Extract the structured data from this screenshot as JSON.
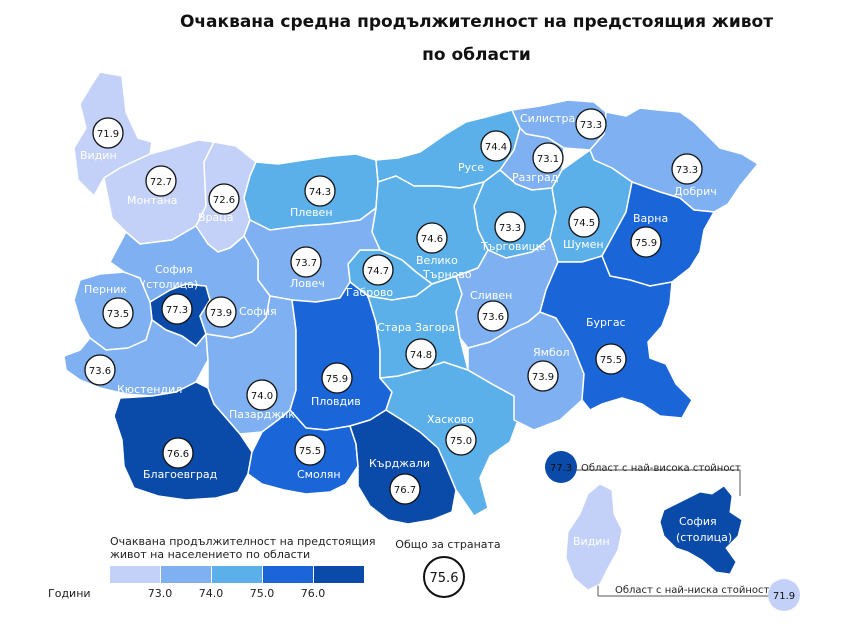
{
  "title_line1": "Очаквана средна продължителност на предстоящия живот",
  "title_line2": "по области",
  "colors": {
    "c1": "#c3d1f8",
    "c2": "#7fb1f2",
    "c3": "#5bb0ea",
    "c4": "#1a66d8",
    "c5": "#0a4aa8",
    "bubble_stroke": "#111111",
    "max_bubble": "#0a4aa8",
    "min_bubble": "#c3d1f8"
  },
  "regions": [
    {
      "name": "Видин",
      "value": "71.9"
    },
    {
      "name": "Монтана",
      "value": "72.7"
    },
    {
      "name": "Враца",
      "value": "72.6"
    },
    {
      "name": "Плевен",
      "value": "74.3"
    },
    {
      "name": "Русе",
      "value": "74.4"
    },
    {
      "name": "Силистра",
      "value": "73.3"
    },
    {
      "name": "Разград",
      "value": "73.1"
    },
    {
      "name": "Добрич",
      "value": "73.3"
    },
    {
      "name": "Търговище",
      "value": "73.3"
    },
    {
      "name": "Шумен",
      "value": "74.5"
    },
    {
      "name": "Варна",
      "value": "75.9"
    },
    {
      "name": "Велико Търново",
      "value": "74.6"
    },
    {
      "name": "Габрово",
      "value": "74.7"
    },
    {
      "name": "Ловеч",
      "value": "73.7"
    },
    {
      "name": "София (столица)",
      "value": "77.3"
    },
    {
      "name": "Перник",
      "value": "73.5"
    },
    {
      "name": "София",
      "value": "73.9"
    },
    {
      "name": "Кюстендил",
      "value": "73.6"
    },
    {
      "name": "Благоевград",
      "value": "76.6"
    },
    {
      "name": "Пазарджик",
      "value": "74.0"
    },
    {
      "name": "Пловдив",
      "value": "75.9"
    },
    {
      "name": "Смолян",
      "value": "75.5"
    },
    {
      "name": "Кърджали",
      "value": "76.7"
    },
    {
      "name": "Хасково",
      "value": "75.0"
    },
    {
      "name": "Стара Загора",
      "value": "74.8"
    },
    {
      "name": "Сливен",
      "value": "73.6"
    },
    {
      "name": "Ямбол",
      "value": "73.9"
    },
    {
      "name": "Бургас",
      "value": "75.5"
    }
  ],
  "legend": {
    "title_line1": "Очаквана продължителност на предстоящия",
    "title_line2": "живот на населението по области",
    "unit": "Години",
    "ticks": [
      "73.0",
      "74.0",
      "75.0",
      "76.0"
    ]
  },
  "national": {
    "label": "Общо за страната",
    "value": "75.6"
  },
  "inset": {
    "max_label": "Област с най-висока стойност",
    "max_value": "77.3",
    "max_region": "София (столица)",
    "min_label": "Област с най-ниска стойност",
    "min_value": "71.9",
    "min_region": "Видин"
  }
}
